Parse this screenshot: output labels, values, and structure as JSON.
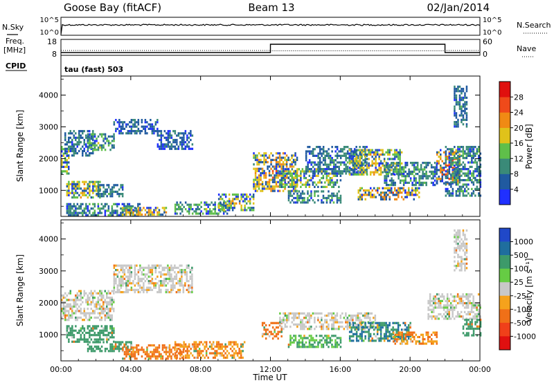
{
  "header": {
    "station": "Goose Bay (fitACF)",
    "beam": "Beam 13",
    "date": "02/Jan/2014"
  },
  "top_panels": {
    "nsky_label": "N.Sky",
    "nsearch_label": "N.Search",
    "noise_ticks": [
      "10^5",
      "10^0"
    ],
    "freq_label_1": "Freq.",
    "freq_label_2": "[MHz]",
    "freq_ticks": [
      "18",
      "8"
    ],
    "nave_label": "Nave",
    "nave_ticks": [
      "60",
      "0"
    ],
    "cpid_label": "CPID",
    "cpid_text": "tau (fast) 503"
  },
  "chart_data": [
    {
      "type": "heatmap",
      "panel": "power",
      "ylabel": "Slant Range [km]",
      "xlabel": "",
      "x_tick_labels": [
        "00:00",
        "04:00",
        "08:00",
        "12:00",
        "16:00",
        "20:00",
        "00:00"
      ],
      "x_ticks_hours": [
        0,
        4,
        8,
        12,
        16,
        20,
        24
      ],
      "xlim_hours": [
        0,
        24
      ],
      "y_ticks": [
        1000,
        2000,
        3000,
        4000
      ],
      "ylim": [
        180,
        4600
      ],
      "colorbar": {
        "label": "Power [dB]",
        "ticks": [
          "4",
          "8",
          "12",
          "16",
          "20",
          "24",
          "28"
        ],
        "tick_values": [
          4,
          8,
          12,
          16,
          20,
          24,
          28
        ],
        "range": [
          0,
          32
        ],
        "colors": [
          "#2030ff",
          "#205aa0",
          "#3a8a78",
          "#5fbf4a",
          "#e0c21a",
          "#f08a14",
          "#ef4a1a",
          "#e0100e"
        ]
      },
      "regions": [
        {
          "t0": 0.0,
          "t1": 0.4,
          "r0": 1450,
          "r1": 2400,
          "power": 14
        },
        {
          "t0": 0.2,
          "t1": 1.8,
          "r0": 2100,
          "r1": 2900,
          "power": 8
        },
        {
          "t0": 1.5,
          "t1": 3.0,
          "r0": 2300,
          "r1": 2800,
          "power": 12
        },
        {
          "t0": 3.0,
          "t1": 5.5,
          "r0": 2800,
          "r1": 3250,
          "power": 6
        },
        {
          "t0": 5.5,
          "t1": 7.5,
          "r0": 2300,
          "r1": 2900,
          "power": 6
        },
        {
          "t0": 0.3,
          "t1": 2.2,
          "r0": 800,
          "r1": 1300,
          "power": 16
        },
        {
          "t0": 2.0,
          "t1": 3.5,
          "r0": 800,
          "r1": 1200,
          "power": 8
        },
        {
          "t0": 0.3,
          "t1": 4.5,
          "r0": 250,
          "r1": 600,
          "power": 10
        },
        {
          "t0": 3.5,
          "t1": 6.0,
          "r0": 220,
          "r1": 480,
          "power": 18
        },
        {
          "t0": 6.5,
          "t1": 9.5,
          "r0": 300,
          "r1": 650,
          "power": 12
        },
        {
          "t0": 9.0,
          "t1": 11.0,
          "r0": 400,
          "r1": 900,
          "power": 16
        },
        {
          "t0": 11.0,
          "t1": 13.5,
          "r0": 1000,
          "r1": 2200,
          "power": 18
        },
        {
          "t0": 12.5,
          "t1": 16.0,
          "r0": 1100,
          "r1": 1700,
          "power": 14
        },
        {
          "t0": 13.0,
          "t1": 16.0,
          "r0": 600,
          "r1": 1000,
          "power": 10
        },
        {
          "t0": 14.0,
          "t1": 17.5,
          "r0": 1500,
          "r1": 2400,
          "power": 8
        },
        {
          "t0": 16.5,
          "t1": 19.5,
          "r0": 1500,
          "r1": 2300,
          "power": 16
        },
        {
          "t0": 17.0,
          "t1": 20.5,
          "r0": 700,
          "r1": 1100,
          "power": 18
        },
        {
          "t0": 18.5,
          "t1": 21.5,
          "r0": 1200,
          "r1": 1900,
          "power": 10
        },
        {
          "t0": 21.5,
          "t1": 22.8,
          "r0": 1200,
          "r1": 2300,
          "power": 20
        },
        {
          "t0": 22.0,
          "t1": 24.0,
          "r0": 800,
          "r1": 2400,
          "power": 10
        },
        {
          "t0": 22.5,
          "t1": 23.2,
          "r0": 3000,
          "r1": 4300,
          "power": 8
        }
      ]
    },
    {
      "type": "heatmap",
      "panel": "velocity",
      "ylabel": "Slant Range [km]",
      "xlabel": "Time UT",
      "x_tick_labels": [
        "00:00",
        "04:00",
        "08:00",
        "12:00",
        "16:00",
        "20:00",
        "00:00"
      ],
      "x_ticks_hours": [
        0,
        4,
        8,
        12,
        16,
        20,
        24
      ],
      "xlim_hours": [
        0,
        24
      ],
      "y_ticks": [
        1000,
        2000,
        3000,
        4000
      ],
      "ylim": [
        180,
        4600
      ],
      "colorbar": {
        "label": "Velocity [m s⁻¹]",
        "ticks": [
          "1000",
          "500",
          "100",
          "25",
          "-25",
          "-100",
          "-500",
          "-1000"
        ],
        "colors": [
          "#2048c8",
          "#1f6e9e",
          "#3d9a6a",
          "#66cc44",
          "#c8c8c8",
          "#f5a21c",
          "#f07018",
          "#f0401a",
          "#e01010"
        ]
      },
      "regions": [
        {
          "t0": 0.0,
          "t1": 3.0,
          "r0": 1450,
          "r1": 2400,
          "vel": 0
        },
        {
          "t0": 3.0,
          "t1": 7.5,
          "r0": 2300,
          "r1": 3200,
          "vel": 0
        },
        {
          "t0": 0.3,
          "t1": 3.0,
          "r0": 800,
          "r1": 1300,
          "vel": 100
        },
        {
          "t0": 1.5,
          "t1": 4.0,
          "r0": 500,
          "r1": 800,
          "vel": 150
        },
        {
          "t0": 3.5,
          "t1": 7.0,
          "r0": 220,
          "r1": 700,
          "vel": -80
        },
        {
          "t0": 6.5,
          "t1": 10.5,
          "r0": 300,
          "r1": 800,
          "vel": -60
        },
        {
          "t0": 11.5,
          "t1": 12.6,
          "r0": 900,
          "r1": 1400,
          "vel": -200
        },
        {
          "t0": 12.5,
          "t1": 18.0,
          "r0": 1200,
          "r1": 1700,
          "vel": 0
        },
        {
          "t0": 13.0,
          "t1": 16.0,
          "r0": 600,
          "r1": 1000,
          "vel": 60
        },
        {
          "t0": 16.5,
          "t1": 20.0,
          "r0": 800,
          "r1": 1400,
          "vel": 300
        },
        {
          "t0": 19.0,
          "t1": 21.5,
          "r0": 700,
          "r1": 1100,
          "vel": -60
        },
        {
          "t0": 21.0,
          "t1": 24.0,
          "r0": 1500,
          "r1": 2300,
          "vel": 0
        },
        {
          "t0": 23.0,
          "t1": 24.0,
          "r0": 1000,
          "r1": 1500,
          "vel": 200
        },
        {
          "t0": 22.5,
          "t1": 23.2,
          "r0": 3000,
          "r1": 4300,
          "vel": 0
        }
      ]
    }
  ]
}
